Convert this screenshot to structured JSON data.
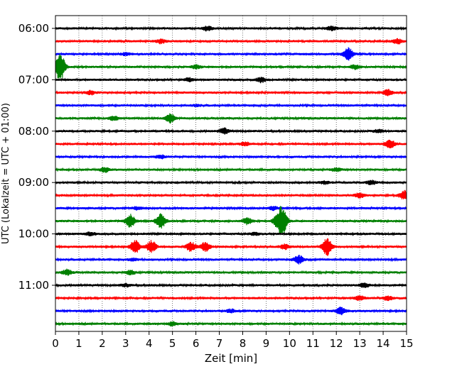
{
  "chart_data": {
    "type": "line",
    "title": "",
    "xlabel": "Zeit  [min]",
    "ylabel": "UTC (Lokalzeit = UTC + 01:00)",
    "xlim": [
      0,
      15
    ],
    "x_ticks": [
      0,
      1,
      2,
      3,
      4,
      5,
      6,
      7,
      8,
      9,
      10,
      11,
      12,
      13,
      14,
      15
    ],
    "x_tick_labels": [
      "0",
      "1",
      "2",
      "3",
      "4",
      "5",
      "6",
      "7",
      "8",
      "9",
      "10",
      "11",
      "12",
      "13",
      "14",
      "15"
    ],
    "grid": "vertical-dotted",
    "trace_interval_min": 15,
    "trace_colors": [
      "#000000",
      "#ff0000",
      "#0000ff",
      "#008000"
    ],
    "y_tick_labels": [
      "06:00",
      "07:00",
      "08:00",
      "09:00",
      "10:00",
      "11:00"
    ],
    "traces": [
      {
        "start": "06:00",
        "events": [
          [
            6.5,
            0.6
          ],
          [
            11.8,
            0.5
          ]
        ]
      },
      {
        "start": "06:15",
        "events": [
          [
            4.5,
            0.5
          ],
          [
            14.6,
            0.6
          ]
        ]
      },
      {
        "start": "06:30",
        "events": [
          [
            12.5,
            1.6
          ],
          [
            3.0,
            0.3
          ]
        ]
      },
      {
        "start": "06:45",
        "events": [
          [
            0.2,
            3.6
          ],
          [
            6.0,
            0.4
          ],
          [
            12.8,
            0.5
          ]
        ]
      },
      {
        "start": "07:00",
        "events": [
          [
            8.8,
            0.6
          ],
          [
            5.7,
            0.4
          ]
        ]
      },
      {
        "start": "07:15",
        "events": [
          [
            1.5,
            0.5
          ],
          [
            14.2,
            0.7
          ]
        ]
      },
      {
        "start": "07:30",
        "events": [
          [
            6.0,
            0.2
          ]
        ]
      },
      {
        "start": "07:45",
        "events": [
          [
            2.5,
            0.5
          ],
          [
            4.9,
            1.2
          ]
        ]
      },
      {
        "start": "08:00",
        "events": [
          [
            7.2,
            0.7
          ],
          [
            13.8,
            0.4
          ]
        ]
      },
      {
        "start": "08:15",
        "events": [
          [
            8.1,
            0.4
          ],
          [
            14.3,
            1.0
          ]
        ]
      },
      {
        "start": "08:30",
        "events": [
          [
            4.5,
            0.4
          ]
        ]
      },
      {
        "start": "08:45",
        "events": [
          [
            2.1,
            0.6
          ],
          [
            12.0,
            0.4
          ]
        ]
      },
      {
        "start": "09:00",
        "events": [
          [
            11.5,
            0.3
          ],
          [
            13.5,
            0.5
          ]
        ]
      },
      {
        "start": "09:15",
        "events": [
          [
            13.0,
            0.6
          ],
          [
            14.9,
            1.1
          ]
        ]
      },
      {
        "start": "09:30",
        "events": [
          [
            3.5,
            0.3
          ],
          [
            9.3,
            0.4
          ]
        ]
      },
      {
        "start": "09:45",
        "events": [
          [
            3.2,
            1.6
          ],
          [
            4.5,
            1.9
          ],
          [
            8.2,
            0.8
          ],
          [
            9.7,
            3.2
          ],
          [
            9.5,
            1.4
          ]
        ]
      },
      {
        "start": "10:00",
        "events": [
          [
            1.5,
            0.4
          ],
          [
            8.5,
            0.3
          ]
        ]
      },
      {
        "start": "10:15",
        "events": [
          [
            3.4,
            1.6
          ],
          [
            4.1,
            1.5
          ],
          [
            5.8,
            1.2
          ],
          [
            6.4,
            1.1
          ],
          [
            9.8,
            0.6
          ],
          [
            11.6,
            2.3
          ]
        ]
      },
      {
        "start": "10:30",
        "events": [
          [
            3.3,
            0.3
          ],
          [
            10.4,
            1.0
          ]
        ]
      },
      {
        "start": "10:45",
        "events": [
          [
            0.5,
            0.7
          ],
          [
            3.2,
            0.5
          ]
        ]
      },
      {
        "start": "11:00",
        "events": [
          [
            13.2,
            0.5
          ],
          [
            3.0,
            0.3
          ]
        ]
      },
      {
        "start": "11:15",
        "events": [
          [
            13.0,
            0.5
          ],
          [
            14.2,
            0.5
          ]
        ]
      },
      {
        "start": "11:30",
        "events": [
          [
            7.5,
            0.4
          ],
          [
            12.2,
            0.9
          ]
        ]
      },
      {
        "start": "11:45",
        "events": [
          [
            5.0,
            0.5
          ]
        ]
      }
    ]
  }
}
